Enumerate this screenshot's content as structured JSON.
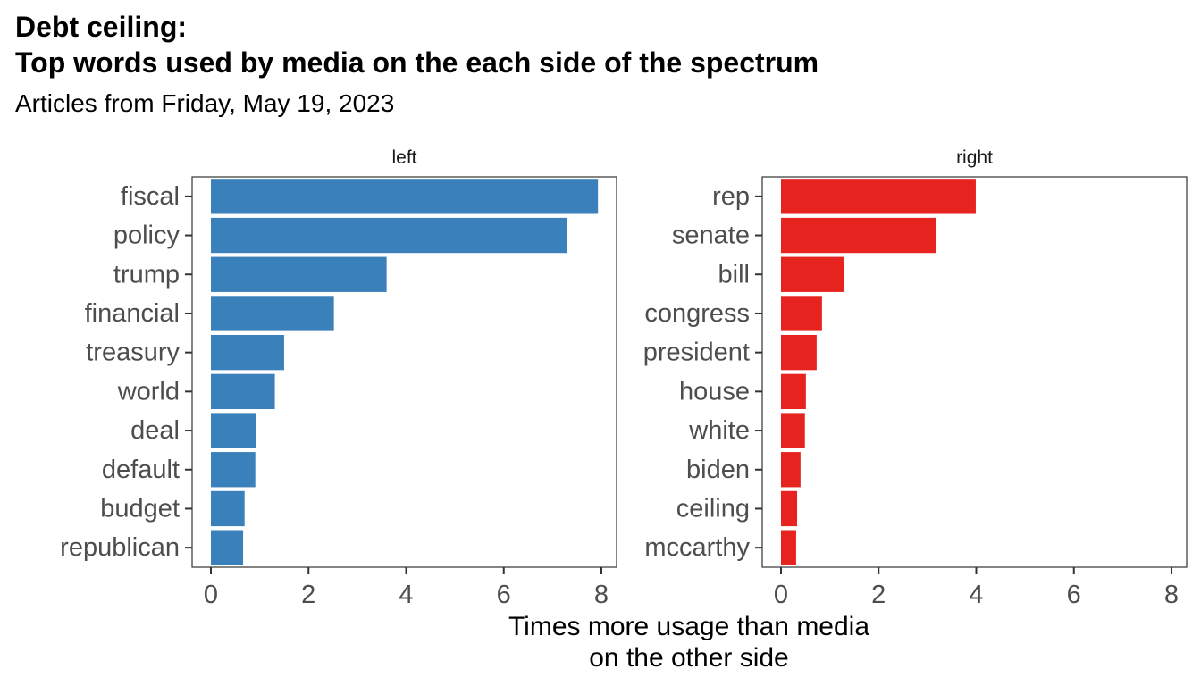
{
  "title_line1": "Debt ceiling:",
  "title_line2": "Top words used by media on the each side of the spectrum",
  "subtitle": "Articles from Friday, May 19, 2023",
  "chart_data": {
    "type": "bar",
    "orientation": "horizontal",
    "xlabel_lines": [
      "Times more usage than media",
      "on the other side"
    ],
    "xlim": [
      0,
      8
    ],
    "x_ticks": [
      0,
      2,
      4,
      6,
      8
    ],
    "grid": false,
    "panels": [
      {
        "label": "left",
        "color": "#3a80bb",
        "categories": [
          "fiscal",
          "policy",
          "trump",
          "financial",
          "treasury",
          "world",
          "deal",
          "default",
          "budget",
          "republican"
        ],
        "values": [
          7.93,
          7.29,
          3.6,
          2.52,
          1.5,
          1.31,
          0.93,
          0.91,
          0.69,
          0.66
        ]
      },
      {
        "label": "right",
        "color": "#e6231f",
        "categories": [
          "rep",
          "senate",
          "bill",
          "congress",
          "president",
          "house",
          "white",
          "biden",
          "ceiling",
          "mccarthy"
        ],
        "values": [
          3.99,
          3.17,
          1.3,
          0.84,
          0.73,
          0.51,
          0.49,
          0.4,
          0.33,
          0.31
        ]
      }
    ]
  }
}
